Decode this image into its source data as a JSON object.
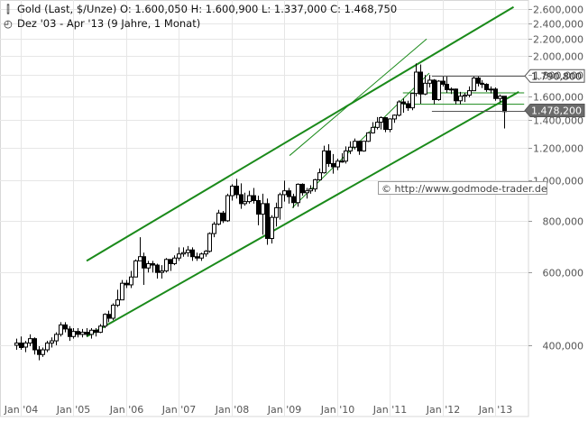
{
  "header": {
    "title": "Gold (Last, $/Unze)",
    "open": "O: 1.600,050",
    "high": "H: 1.600,900",
    "low": "L: 1.337,000",
    "close": "C: 1.468,750",
    "range": "Dez '03 - Apr '13 (9 Jahre, 1 Monat)",
    "icons": {
      "chart": "candlestick-icon",
      "period": "clock-icon"
    }
  },
  "watermark": "© http://www.godmode-trader.de",
  "chart_data": {
    "type": "candlestick",
    "scale": "log",
    "ylim": [
      340000,
      2650000
    ],
    "y_ticks": [
      {
        "value": 400000,
        "label": "400,000"
      },
      {
        "value": 600000,
        "label": "600,000"
      },
      {
        "value": 800000,
        "label": "800,000"
      },
      {
        "value": 1000000,
        "label": "1.000,000"
      },
      {
        "value": 1200000,
        "label": "1.200,000"
      },
      {
        "value": 1400000,
        "label": "1.400,000"
      },
      {
        "value": 1600000,
        "label": "1.600,000"
      },
      {
        "value": 1800000,
        "label": "1.800,000"
      },
      {
        "value": 2000000,
        "label": "2.000,000"
      },
      {
        "value": 2200000,
        "label": "2.200,000"
      },
      {
        "value": 2400000,
        "label": "2.400,000"
      },
      {
        "value": 2600000,
        "label": "2.600,000"
      }
    ],
    "x_ticks": [
      {
        "year": 2004,
        "label": "Jan '04"
      },
      {
        "year": 2005,
        "label": "Jan '05"
      },
      {
        "year": 2006,
        "label": "Jan '06"
      },
      {
        "year": 2007,
        "label": "Jan '07"
      },
      {
        "year": 2008,
        "label": "Jan '08"
      },
      {
        "year": 2009,
        "label": "Jan '09"
      },
      {
        "year": 2010,
        "label": "Jan '10"
      },
      {
        "year": 2011,
        "label": "Jan '11"
      },
      {
        "year": 2012,
        "label": "Jan '12"
      },
      {
        "year": 2013,
        "label": "Jan '13"
      }
    ],
    "x_range": [
      2003.92,
      2013.3
    ],
    "grid": true,
    "price_markers": [
      {
        "value": 1790800,
        "label": "1.790,800",
        "style": "outline"
      },
      {
        "value": 1478200,
        "label": "1.478,200",
        "style": "filled"
      }
    ],
    "marker_lines": [
      1790800,
      1478200
    ],
    "candles": [
      [
        400000,
        415000,
        390000,
        405000
      ],
      [
        405000,
        420000,
        390000,
        395000
      ],
      [
        396000,
        410000,
        385000,
        405000
      ],
      [
        405000,
        425000,
        398000,
        415000
      ],
      [
        415000,
        418000,
        380000,
        390000
      ],
      [
        390000,
        398000,
        368000,
        380000
      ],
      [
        380000,
        395000,
        375000,
        390000
      ],
      [
        390000,
        410000,
        385000,
        405000
      ],
      [
        405000,
        418000,
        395000,
        410000
      ],
      [
        410000,
        430000,
        400000,
        425000
      ],
      [
        425000,
        455000,
        420000,
        448000
      ],
      [
        448000,
        455000,
        430000,
        438000
      ],
      [
        438000,
        445000,
        410000,
        420000
      ],
      [
        420000,
        440000,
        415000,
        432000
      ],
      [
        432000,
        440000,
        418000,
        425000
      ],
      [
        425000,
        438000,
        418000,
        430000
      ],
      [
        430000,
        440000,
        420000,
        425000
      ],
      [
        425000,
        440000,
        415000,
        435000
      ],
      [
        435000,
        440000,
        420000,
        430000
      ],
      [
        430000,
        450000,
        428000,
        445000
      ],
      [
        445000,
        478000,
        440000,
        475000
      ],
      [
        475000,
        485000,
        455000,
        465000
      ],
      [
        465000,
        505000,
        460000,
        500000
      ],
      [
        500000,
        545000,
        495000,
        515000
      ],
      [
        515000,
        575000,
        515000,
        565000
      ],
      [
        565000,
        575000,
        550000,
        560000
      ],
      [
        560000,
        605000,
        550000,
        585000
      ],
      [
        585000,
        645000,
        585000,
        640000
      ],
      [
        640000,
        730000,
        640000,
        655000
      ],
      [
        655000,
        670000,
        560000,
        615000
      ],
      [
        615000,
        640000,
        600000,
        630000
      ],
      [
        630000,
        640000,
        600000,
        625000
      ],
      [
        625000,
        630000,
        580000,
        600000
      ],
      [
        600000,
        625000,
        580000,
        605000
      ],
      [
        605000,
        650000,
        600000,
        645000
      ],
      [
        645000,
        645000,
        605000,
        630000
      ],
      [
        630000,
        660000,
        625000,
        650000
      ],
      [
        650000,
        690000,
        640000,
        665000
      ],
      [
        665000,
        690000,
        655000,
        670000
      ],
      [
        670000,
        695000,
        655000,
        680000
      ],
      [
        680000,
        690000,
        640000,
        655000
      ],
      [
        655000,
        670000,
        640000,
        650000
      ],
      [
        650000,
        670000,
        640000,
        665000
      ],
      [
        665000,
        680000,
        655000,
        675000
      ],
      [
        675000,
        750000,
        670000,
        745000
      ],
      [
        745000,
        795000,
        730000,
        785000
      ],
      [
        785000,
        850000,
        780000,
        835000
      ],
      [
        835000,
        845000,
        790000,
        800000
      ],
      [
        800000,
        930000,
        795000,
        920000
      ],
      [
        920000,
        980000,
        895000,
        970000
      ],
      [
        970000,
        1010000,
        905000,
        925000
      ],
      [
        925000,
        985000,
        855000,
        880000
      ],
      [
        880000,
        935000,
        870000,
        890000
      ],
      [
        890000,
        945000,
        880000,
        920000
      ],
      [
        920000,
        960000,
        880000,
        895000
      ],
      [
        895000,
        920000,
        780000,
        830000
      ],
      [
        830000,
        930000,
        740000,
        880000
      ],
      [
        880000,
        905000,
        700000,
        725000
      ],
      [
        725000,
        825000,
        705000,
        815000
      ],
      [
        815000,
        885000,
        775000,
        860000
      ],
      [
        860000,
        935000,
        805000,
        925000
      ],
      [
        925000,
        1000000,
        890000,
        945000
      ],
      [
        945000,
        960000,
        880000,
        915000
      ],
      [
        915000,
        930000,
        860000,
        885000
      ],
      [
        885000,
        985000,
        865000,
        980000
      ],
      [
        980000,
        985000,
        920000,
        935000
      ],
      [
        935000,
        960000,
        905000,
        945000
      ],
      [
        945000,
        975000,
        930000,
        955000
      ],
      [
        955000,
        1010000,
        940000,
        1005000
      ],
      [
        1005000,
        1070000,
        1000000,
        1045000
      ],
      [
        1045000,
        1215000,
        1040000,
        1180000
      ],
      [
        1180000,
        1225000,
        1080000,
        1100000
      ],
      [
        1100000,
        1160000,
        1040000,
        1080000
      ],
      [
        1080000,
        1130000,
        1060000,
        1115000
      ],
      [
        1115000,
        1165000,
        1105000,
        1115000
      ],
      [
        1115000,
        1210000,
        1100000,
        1180000
      ],
      [
        1180000,
        1245000,
        1160000,
        1205000
      ],
      [
        1205000,
        1265000,
        1190000,
        1245000
      ],
      [
        1245000,
        1250000,
        1155000,
        1180000
      ],
      [
        1180000,
        1240000,
        1175000,
        1245000
      ],
      [
        1245000,
        1310000,
        1240000,
        1305000
      ],
      [
        1305000,
        1385000,
        1300000,
        1345000
      ],
      [
        1345000,
        1425000,
        1330000,
        1385000
      ],
      [
        1385000,
        1430000,
        1330000,
        1420000
      ],
      [
        1420000,
        1425000,
        1310000,
        1330000
      ],
      [
        1330000,
        1415000,
        1310000,
        1410000
      ],
      [
        1410000,
        1445000,
        1380000,
        1440000
      ],
      [
        1440000,
        1565000,
        1430000,
        1550000
      ],
      [
        1550000,
        1580000,
        1460000,
        1535000
      ],
      [
        1535000,
        1560000,
        1475000,
        1500000
      ],
      [
        1500000,
        1630000,
        1480000,
        1625000
      ],
      [
        1625000,
        1920000,
        1600000,
        1830000
      ],
      [
        1830000,
        1910000,
        1535000,
        1620000
      ],
      [
        1620000,
        1800000,
        1610000,
        1720000
      ],
      [
        1720000,
        1800000,
        1680000,
        1750000
      ],
      [
        1750000,
        1760000,
        1530000,
        1570000
      ],
      [
        1570000,
        1750000,
        1560000,
        1740000
      ],
      [
        1740000,
        1790000,
        1690000,
        1710000
      ],
      [
        1710000,
        1790000,
        1630000,
        1660000
      ],
      [
        1660000,
        1680000,
        1620000,
        1665000
      ],
      [
        1665000,
        1670000,
        1530000,
        1560000
      ],
      [
        1560000,
        1640000,
        1530000,
        1600000
      ],
      [
        1600000,
        1630000,
        1550000,
        1610000
      ],
      [
        1610000,
        1690000,
        1590000,
        1650000
      ],
      [
        1650000,
        1790000,
        1650000,
        1770000
      ],
      [
        1770000,
        1790000,
        1690000,
        1720000
      ],
      [
        1720000,
        1750000,
        1675000,
        1710000
      ],
      [
        1710000,
        1720000,
        1640000,
        1660000
      ],
      [
        1660000,
        1690000,
        1625000,
        1665000
      ],
      [
        1665000,
        1680000,
        1560000,
        1580000
      ],
      [
        1580000,
        1615000,
        1550000,
        1600000
      ],
      [
        1600000,
        1600000,
        1337000,
        1468750
      ]
    ],
    "trend_lines": [
      {
        "points": [
          [
            2005.25,
            640000
          ],
          [
            2013.35,
            2630000
          ]
        ],
        "width": 2
      },
      {
        "points": [
          [
            2005.25,
            420000
          ],
          [
            2013.45,
            1640000
          ]
        ],
        "width": 2
      },
      {
        "points": [
          [
            2011.25,
            1630000
          ],
          [
            2013.55,
            1630000
          ]
        ],
        "width": 1
      },
      {
        "points": [
          [
            2011.25,
            1530000
          ],
          [
            2013.55,
            1530000
          ]
        ],
        "width": 1
      },
      {
        "points": [
          [
            2009.15,
            860000
          ],
          [
            2011.75,
            1820000
          ]
        ],
        "width": 1
      },
      {
        "points": [
          [
            2009.1,
            1150000
          ],
          [
            2011.7,
            2200000
          ]
        ],
        "width": 1
      }
    ],
    "colors": {
      "trend": "#1a8a1a",
      "candle": "#000000",
      "candle_up": "#ffffff",
      "grid": "#e6e6e6",
      "flag_fill": "#6b6b6b"
    }
  }
}
